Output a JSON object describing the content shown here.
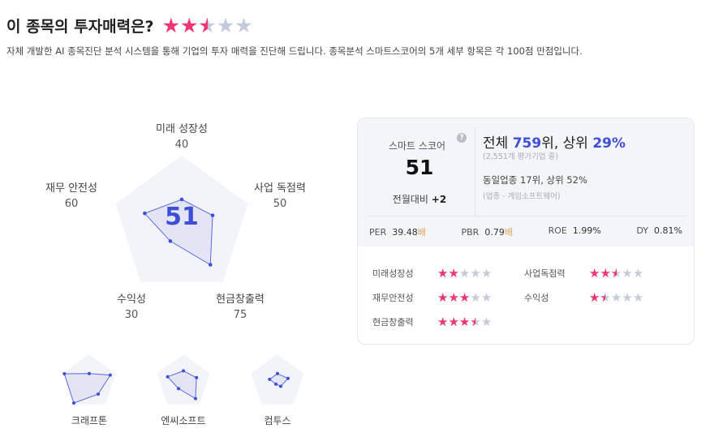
{
  "header": {
    "title": "이 종목의 투자매력은?",
    "rating": 2.5,
    "description": "자체 개발한 AI 종목진단 분석 시스템을 통해 기업의 투자 매력을 진단해 드립니다. 종목분석 스마트스코어의 5개 세부 항목은 각 100점 만점입니다."
  },
  "radar": {
    "score": "51",
    "max": 100,
    "axes": [
      {
        "label": "미래 성장성",
        "value": 40
      },
      {
        "label": "사업 독점력",
        "value": 50
      },
      {
        "label": "현금창출력",
        "value": 75
      },
      {
        "label": "수익성",
        "value": 30
      },
      {
        "label": "재무 안전성",
        "value": 60
      }
    ]
  },
  "peers": [
    {
      "name": "크래프톤",
      "values": [
        30,
        80,
        55,
        95,
        95
      ]
    },
    {
      "name": "엔씨소프트",
      "values": [
        40,
        50,
        75,
        30,
        60
      ]
    },
    {
      "name": "컴투스",
      "values": [
        30,
        40,
        20,
        10,
        30
      ]
    }
  ],
  "card": {
    "smart_label": "스마트 스코어",
    "score": "51",
    "change_label": "전월대비",
    "change": "+2",
    "rank_prefix": "전체 ",
    "rank": "759",
    "rank_suffix": "위, 상위 ",
    "top_pct": "29%",
    "rank_sub": "(2,551개 평가기업 중)",
    "sector_rank": "동일업종 17위, 상위 52%",
    "sector_sub": "(업종 - 게임소프트웨어)",
    "metrics": [
      {
        "label": "PER",
        "value": "39.48",
        "unit": "배"
      },
      {
        "label": "PBR",
        "value": "0.79",
        "unit": "배"
      },
      {
        "label": "ROE",
        "value": "1.99%",
        "unit": ""
      },
      {
        "label": "DY",
        "value": "0.81%",
        "unit": ""
      }
    ],
    "ratings": [
      {
        "label": "미래성장성",
        "stars": 2
      },
      {
        "label": "사업독점력",
        "stars": 2.5
      },
      {
        "label": "재무안전성",
        "stars": 3
      },
      {
        "label": "수익성",
        "stars": 1.5
      },
      {
        "label": "현금창출력",
        "stars": 3.5
      }
    ]
  },
  "colors": {
    "accent": "#3d4fd6",
    "star": "#f23674",
    "star_off": "#c3cbdb",
    "pentagon": "#f3f4f9"
  }
}
